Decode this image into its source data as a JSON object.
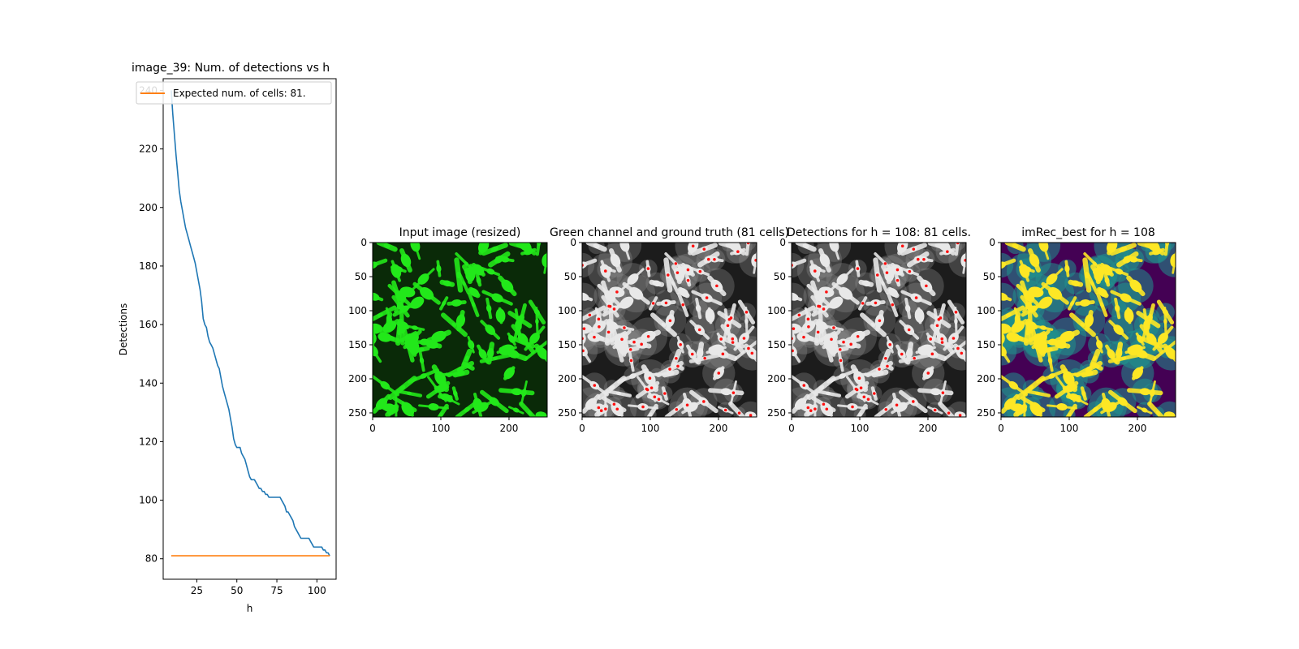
{
  "chart_data": [
    {
      "type": "line",
      "title": "image_39: Num. of detections vs h",
      "xlabel": "h",
      "ylabel": "Detections",
      "xlim": [
        4,
        112
      ],
      "ylim": [
        73,
        244
      ],
      "xticks": [
        25,
        50,
        75,
        100
      ],
      "yticks": [
        80,
        100,
        120,
        140,
        160,
        180,
        200,
        220,
        240
      ],
      "legend_position": "upper-right",
      "series": [
        {
          "name": "detections",
          "color": "#1f77b4",
          "x": [
            9,
            10,
            11,
            12,
            13,
            14,
            15,
            16,
            17,
            18,
            19,
            20,
            21,
            22,
            23,
            24,
            25,
            26,
            27,
            28,
            29,
            30,
            31,
            32,
            33,
            34,
            35,
            36,
            37,
            38,
            39,
            40,
            41,
            42,
            43,
            44,
            45,
            46,
            47,
            48,
            49,
            50,
            51,
            52,
            53,
            54,
            55,
            56,
            57,
            58,
            59,
            60,
            61,
            62,
            63,
            64,
            65,
            66,
            67,
            68,
            69,
            70,
            71,
            72,
            73,
            74,
            75,
            76,
            77,
            78,
            79,
            80,
            81,
            82,
            83,
            84,
            85,
            86,
            87,
            88,
            89,
            90,
            91,
            92,
            93,
            94,
            95,
            96,
            97,
            98,
            99,
            100,
            101,
            102,
            103,
            104,
            105,
            106,
            107,
            108
          ],
          "values": [
            240,
            232,
            225,
            218,
            212,
            206,
            202,
            199,
            196,
            193,
            191,
            189,
            187,
            185,
            183,
            181,
            178,
            175,
            172,
            168,
            162,
            160,
            159,
            156,
            154,
            153,
            152,
            150,
            148,
            146,
            145,
            142,
            139,
            137,
            135,
            133,
            131,
            128,
            125,
            121,
            119,
            118,
            118,
            118,
            116,
            115,
            114,
            112,
            110,
            108,
            107,
            107,
            107,
            106,
            105,
            104,
            104,
            103,
            103,
            102,
            102,
            101,
            101,
            101,
            101,
            101,
            101,
            101,
            101,
            100,
            99,
            98,
            96,
            96,
            95,
            94,
            93,
            91,
            90,
            89,
            88,
            87,
            87,
            87,
            87,
            87,
            87,
            86,
            85,
            84,
            84,
            84,
            84,
            84,
            84,
            83,
            83,
            82,
            82,
            81
          ]
        },
        {
          "name": "Expected num. of cells: 81.",
          "color": "#ff7f0e",
          "x": [
            9,
            108
          ],
          "values": [
            81,
            81
          ]
        }
      ]
    },
    {
      "type": "image",
      "title": "Input image (resized)",
      "colormap": "green",
      "xlim": [
        0,
        256
      ],
      "ylim": [
        256,
        0
      ],
      "xticks": [
        0,
        100,
        200
      ],
      "yticks": [
        0,
        50,
        100,
        150,
        200,
        250
      ]
    },
    {
      "type": "image",
      "title": "Green channel and ground truth (81 cells)",
      "colormap": "gray",
      "markers": "red dots",
      "xlim": [
        0,
        256
      ],
      "ylim": [
        256,
        0
      ],
      "xticks": [
        0,
        100,
        200
      ],
      "yticks": [
        0,
        50,
        100,
        150,
        200,
        250
      ]
    },
    {
      "type": "image",
      "title": "Detections for h = 108: 81 cells.",
      "colormap": "gray",
      "markers": "red dots",
      "xlim": [
        0,
        256
      ],
      "ylim": [
        256,
        0
      ],
      "xticks": [
        0,
        100,
        200
      ],
      "yticks": [
        0,
        50,
        100,
        150,
        200,
        250
      ]
    },
    {
      "type": "image",
      "title": "imRec_best for h = 108",
      "colormap": "viridis",
      "xlim": [
        0,
        256
      ],
      "ylim": [
        256,
        0
      ],
      "xticks": [
        0,
        100,
        200
      ],
      "yticks": [
        0,
        50,
        100,
        150,
        200,
        250
      ]
    }
  ],
  "colors": {
    "green_bg": "#0a2a08",
    "green_fg": "#22e81a",
    "gray_bg": "#1c1c1c",
    "gray_fg": "#e8e8e8",
    "viridis_low": "#440154",
    "viridis_mid": "#21918c",
    "viridis_high": "#fde725",
    "marker": "#ff1010"
  }
}
